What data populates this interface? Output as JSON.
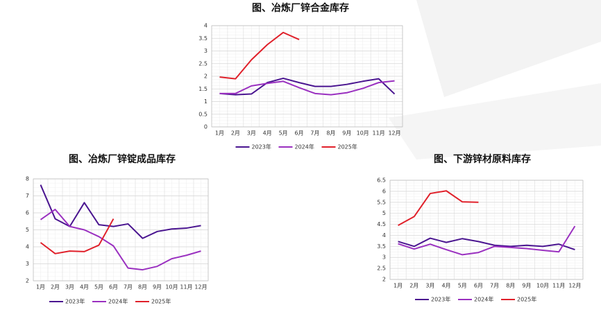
{
  "chart_data": [
    {
      "type": "line",
      "title": "图、冶炼厂锌合金库存",
      "categories": [
        "1月",
        "2月",
        "3月",
        "4月",
        "5月",
        "6月",
        "7月",
        "8月",
        "9月",
        "10月",
        "11月",
        "12月"
      ],
      "series": [
        {
          "name": "2023年",
          "color": "#4a1590",
          "values": [
            1.32,
            1.27,
            1.3,
            1.75,
            1.92,
            1.75,
            1.6,
            1.6,
            1.68,
            1.8,
            1.9,
            1.3
          ]
        },
        {
          "name": "2024年",
          "color": "#9a30c0",
          "values": [
            1.32,
            1.32,
            1.62,
            1.72,
            1.8,
            1.55,
            1.32,
            1.27,
            1.35,
            1.52,
            1.75,
            1.82
          ]
        },
        {
          "name": "2025年",
          "color": "#e0202a",
          "values": [
            1.97,
            1.9,
            2.65,
            3.25,
            3.73,
            3.45,
            null,
            null,
            null,
            null,
            null,
            null
          ]
        }
      ],
      "ylim": [
        0,
        4
      ],
      "yticks": [
        0,
        0.5,
        1,
        1.5,
        2,
        2.5,
        3,
        3.5,
        4
      ],
      "grid": true,
      "legend": "bottom"
    },
    {
      "type": "line",
      "title": "图、冶炼厂锌锭成品库存",
      "categories": [
        "1月",
        "2月",
        "3月",
        "4月",
        "5月",
        "6月",
        "7月",
        "8月",
        "9月",
        "10月",
        "11月",
        "12月"
      ],
      "series": [
        {
          "name": "2023年",
          "color": "#4a1590",
          "values": [
            7.65,
            5.65,
            5.2,
            6.6,
            5.3,
            5.2,
            5.35,
            4.5,
            4.9,
            5.05,
            5.1,
            5.25
          ]
        },
        {
          "name": "2024年",
          "color": "#9a30c0",
          "values": [
            5.6,
            6.2,
            5.2,
            5.0,
            4.6,
            4.05,
            2.75,
            2.65,
            2.85,
            3.3,
            3.5,
            3.75
          ]
        },
        {
          "name": "2025年",
          "color": "#e0202a",
          "values": [
            4.25,
            3.6,
            3.75,
            3.72,
            4.1,
            5.65,
            null,
            null,
            null,
            null,
            null,
            null
          ]
        }
      ],
      "ylim": [
        2,
        8
      ],
      "yticks": [
        2,
        3,
        4,
        5,
        6,
        7,
        8
      ],
      "grid": true,
      "legend": "bottom"
    },
    {
      "type": "line",
      "title": "图、下游锌材原料库存",
      "categories": [
        "1月",
        "2月",
        "3月",
        "4月",
        "5月",
        "6月",
        "7月",
        "8月",
        "9月",
        "10月",
        "11月",
        "12月"
      ],
      "series": [
        {
          "name": "2023年",
          "color": "#4a1590",
          "values": [
            3.72,
            3.5,
            3.87,
            3.68,
            3.85,
            3.72,
            3.55,
            3.5,
            3.55,
            3.5,
            3.6,
            3.35
          ]
        },
        {
          "name": "2024年",
          "color": "#9a30c0",
          "values": [
            3.62,
            3.38,
            3.6,
            3.35,
            3.12,
            3.22,
            3.5,
            3.45,
            3.4,
            3.32,
            3.25,
            4.42
          ]
        },
        {
          "name": "2025年",
          "color": "#e0202a",
          "values": [
            4.45,
            4.85,
            5.9,
            6.02,
            5.52,
            5.5,
            null,
            null,
            null,
            null,
            null,
            null
          ]
        }
      ],
      "ylim": [
        2,
        6.5
      ],
      "yticks": [
        2,
        2.5,
        3,
        3.5,
        4,
        4.5,
        5,
        5.5,
        6,
        6.5
      ],
      "grid": true,
      "legend": "bottom"
    }
  ]
}
